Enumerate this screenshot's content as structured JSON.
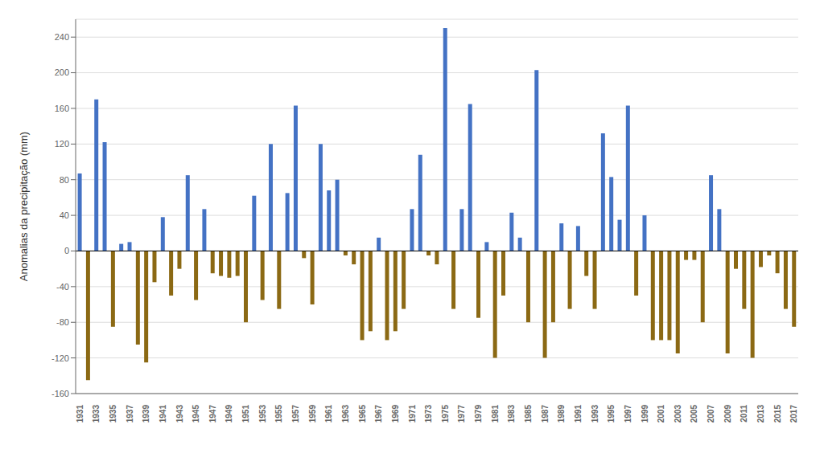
{
  "chart_data": {
    "type": "bar",
    "ylabel": "Anomalias da precipitação (mm)",
    "categories": [
      "1931",
      null,
      "1933",
      null,
      "1935",
      null,
      "1937",
      null,
      "1939",
      null,
      "1941",
      null,
      "1943",
      null,
      "1945",
      null,
      "1947",
      null,
      "1949",
      null,
      "1951",
      null,
      "1953",
      null,
      "1955",
      null,
      "1957",
      null,
      "1959",
      null,
      "1961",
      null,
      "1963",
      null,
      "1965",
      null,
      "1967",
      null,
      "1969",
      null,
      "1971",
      null,
      "1973",
      null,
      "1975",
      null,
      "1977",
      null,
      "1979",
      null,
      "1981",
      null,
      "1983",
      null,
      "1985",
      null,
      "1987",
      null,
      "1989",
      null,
      "1991",
      null,
      "1993",
      null,
      "1995",
      null,
      "1997",
      null,
      "1999",
      null,
      "2001",
      null,
      "2003",
      null,
      "2005",
      null,
      "2007",
      null,
      "2009",
      null,
      "2011",
      null,
      "2013",
      null,
      "2015",
      null,
      "2017"
    ],
    "values": [
      87,
      -145,
      170,
      122,
      -85,
      8,
      10,
      -105,
      -125,
      -35,
      38,
      -50,
      -20,
      85,
      -55,
      47,
      -25,
      -28,
      -30,
      -28,
      -80,
      62,
      -55,
      120,
      -65,
      65,
      163,
      -8,
      -60,
      120,
      68,
      80,
      -5,
      -15,
      -100,
      -90,
      15,
      -100,
      -90,
      -65,
      47,
      108,
      -5,
      -15,
      250,
      -65,
      47,
      165,
      -75,
      10,
      -120,
      -50,
      43,
      15,
      -80,
      203,
      -120,
      -80,
      31,
      -65,
      28,
      -28,
      -65,
      132,
      83,
      35,
      163,
      -50,
      40,
      -100,
      -100,
      -100,
      -115,
      -10,
      -10,
      -80,
      85,
      47,
      -115,
      -20,
      -65,
      -120,
      -18,
      -5,
      -25,
      -65,
      -85
    ],
    "colors": [
      "#4472C4",
      "#8B6914",
      "#4472C4",
      "#4472C4",
      "#8B6914",
      "#4472C4",
      "#4472C4",
      "#8B6914",
      "#8B6914",
      "#8B6914",
      "#4472C4",
      "#8B6914",
      "#8B6914",
      "#4472C4",
      "#8B6914",
      "#4472C4",
      "#8B6914",
      "#8B6914",
      "#8B6914",
      "#8B6914",
      "#8B6914",
      "#4472C4",
      "#8B6914",
      "#4472C4",
      "#8B6914",
      "#4472C4",
      "#4472C4",
      "#8B6914",
      "#8B6914",
      "#4472C4",
      "#4472C4",
      "#4472C4",
      "#8B6914",
      "#8B6914",
      "#8B6914",
      "#8B6914",
      "#4472C4",
      "#8B6914",
      "#8B6914",
      "#8B6914",
      "#4472C4",
      "#4472C4",
      "#8B6914",
      "#8B6914",
      "#4472C4",
      "#8B6914",
      "#4472C4",
      "#4472C4",
      "#8B6914",
      "#4472C4",
      "#8B6914",
      "#8B6914",
      "#4472C4",
      "#4472C4",
      "#8B6914",
      "#4472C4",
      "#8B6914",
      "#8B6914",
      "#4472C4",
      "#8B6914",
      "#4472C4",
      "#8B6914",
      "#8B6914",
      "#4472C4",
      "#4472C4",
      "#4472C4",
      "#4472C4",
      "#8B6914",
      "#4472C4",
      "#8B6914",
      "#8B6914",
      "#8B6914",
      "#8B6914",
      "#8B6914",
      "#8B6914",
      "#8B6914",
      "#4472C4",
      "#4472C4",
      "#8B6914",
      "#8B6914",
      "#8B6914",
      "#8B6914",
      "#8B6914",
      "#8B6914",
      "#8B6914",
      "#8B6914",
      "#8B6914"
    ],
    "ylim": [
      -160,
      260
    ],
    "yticks": [
      -160,
      -120,
      -80,
      -40,
      0,
      40,
      80,
      120,
      160,
      200,
      240
    ],
    "grid": true
  }
}
